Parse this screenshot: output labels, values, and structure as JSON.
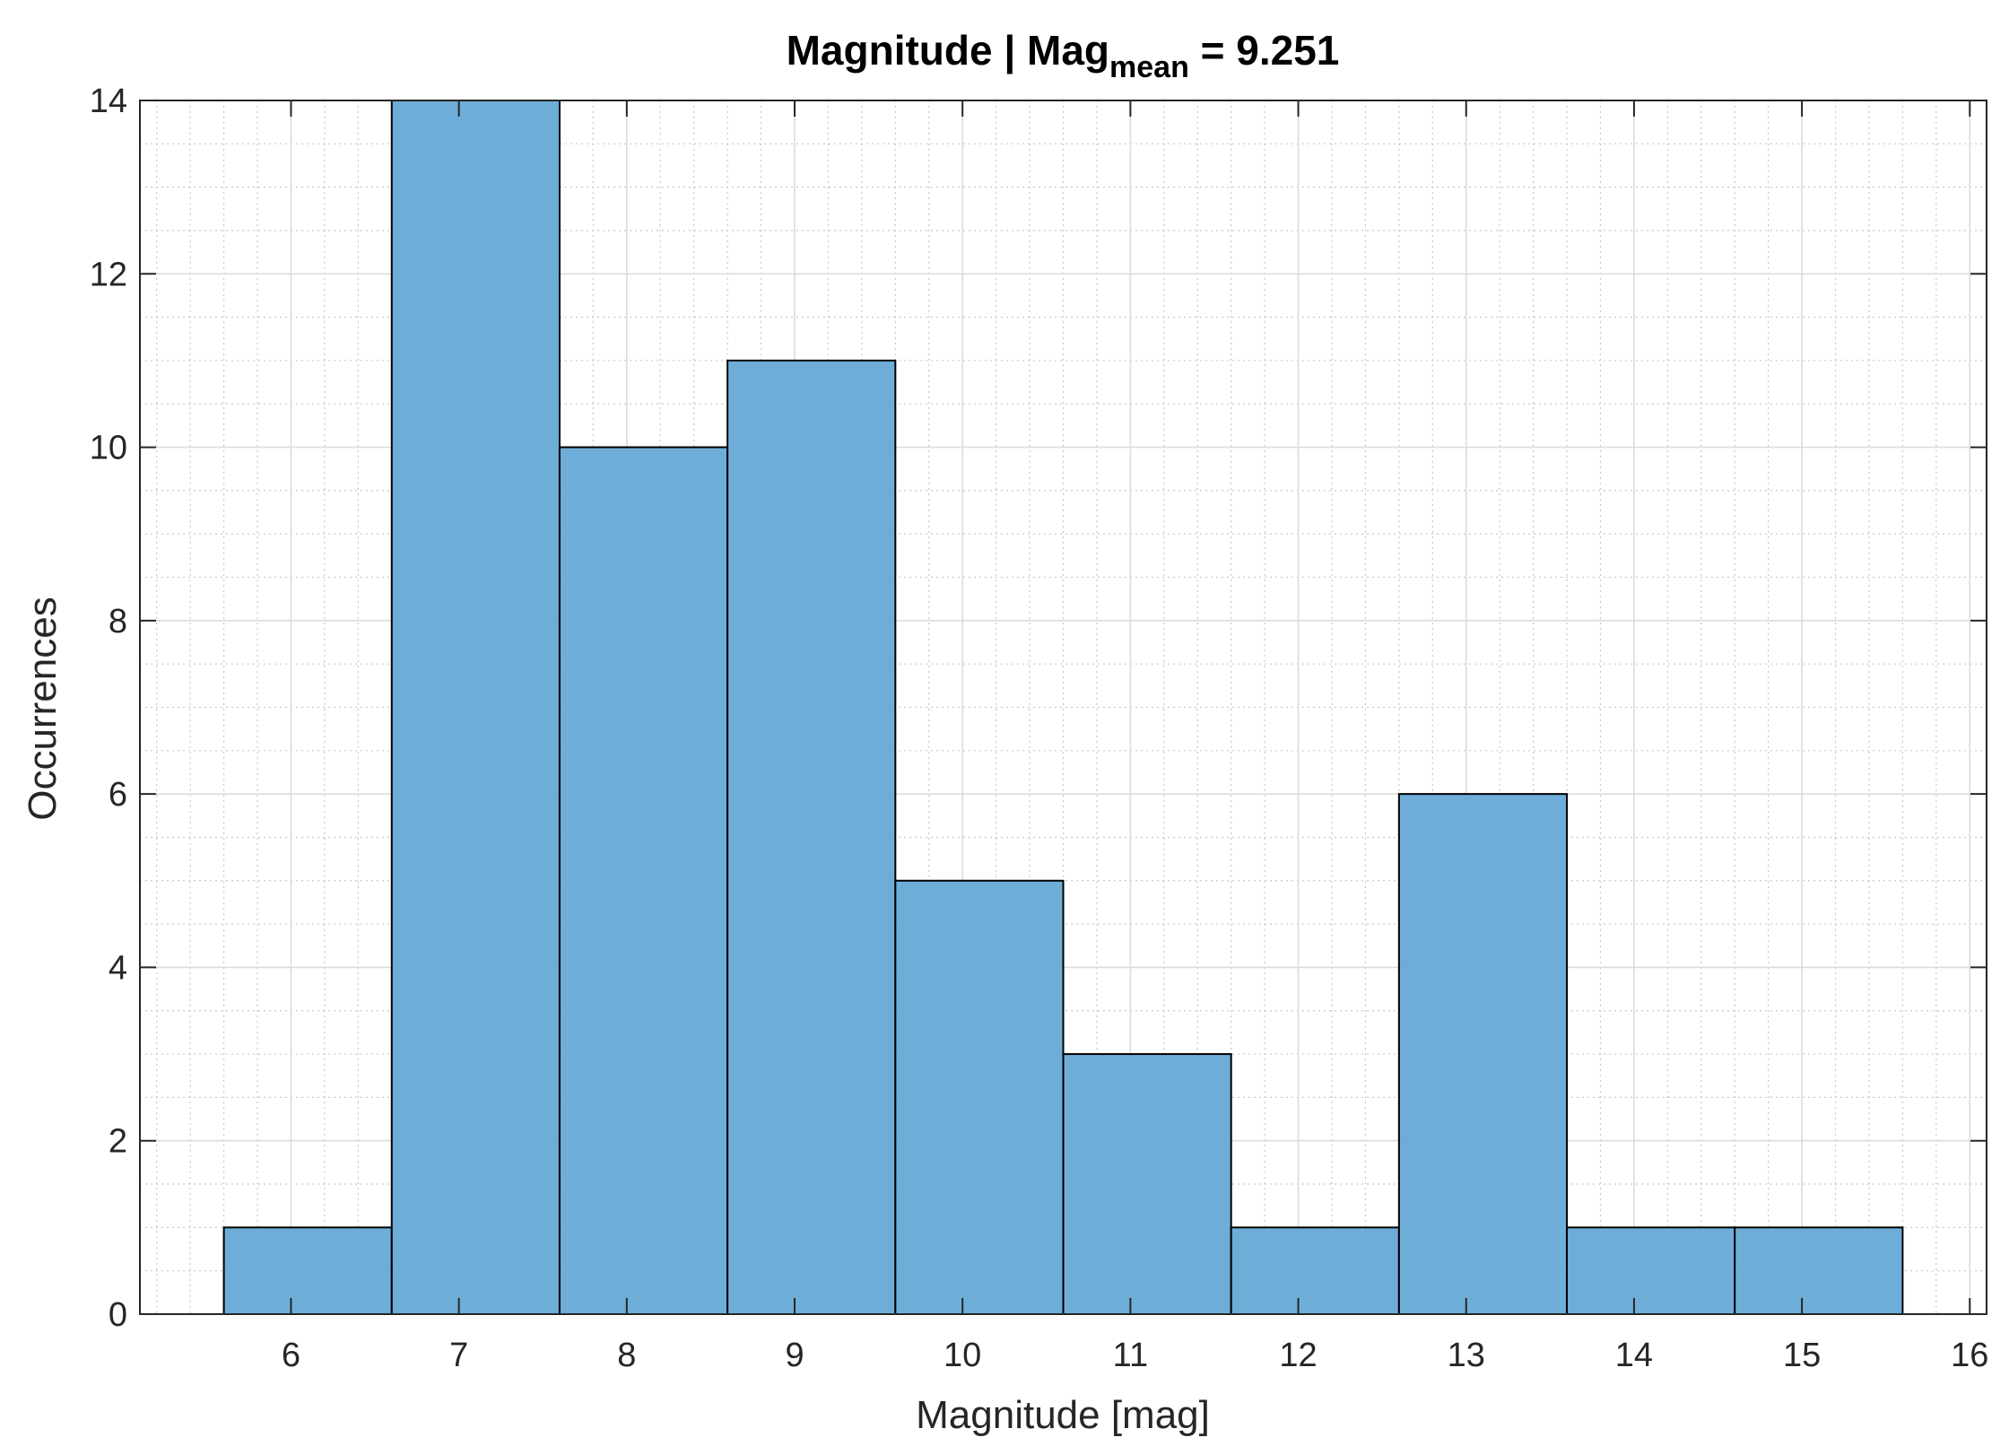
{
  "chart_data": {
    "type": "bar",
    "subtype": "histogram",
    "title": {
      "prefix": "Magnitude | Mag",
      "subscript": "mean",
      "suffix": " = 9.251"
    },
    "xlabel": "Magnitude [mag]",
    "ylabel": "Occurrences",
    "xlim": [
      5.1,
      16.1
    ],
    "ylim": [
      0,
      14
    ],
    "x_ticks": [
      6,
      7,
      8,
      9,
      10,
      11,
      12,
      13,
      14,
      15,
      16
    ],
    "y_ticks": [
      0,
      2,
      4,
      6,
      8,
      10,
      12,
      14
    ],
    "bin_width": 1,
    "bins": [
      {
        "start": 5.6,
        "end": 6.6,
        "count": 1
      },
      {
        "start": 6.6,
        "end": 7.6,
        "count": 14
      },
      {
        "start": 7.6,
        "end": 8.6,
        "count": 10
      },
      {
        "start": 8.6,
        "end": 9.6,
        "count": 11
      },
      {
        "start": 9.6,
        "end": 10.6,
        "count": 5
      },
      {
        "start": 10.6,
        "end": 11.6,
        "count": 3
      },
      {
        "start": 11.6,
        "end": 12.6,
        "count": 1
      },
      {
        "start": 12.6,
        "end": 13.6,
        "count": 6
      },
      {
        "start": 13.6,
        "end": 14.6,
        "count": 1
      },
      {
        "start": 14.6,
        "end": 15.6,
        "count": 1
      }
    ],
    "grid": true,
    "minor_grid": true,
    "bar_color": "#66a9d6",
    "edge_color": "#000000"
  }
}
